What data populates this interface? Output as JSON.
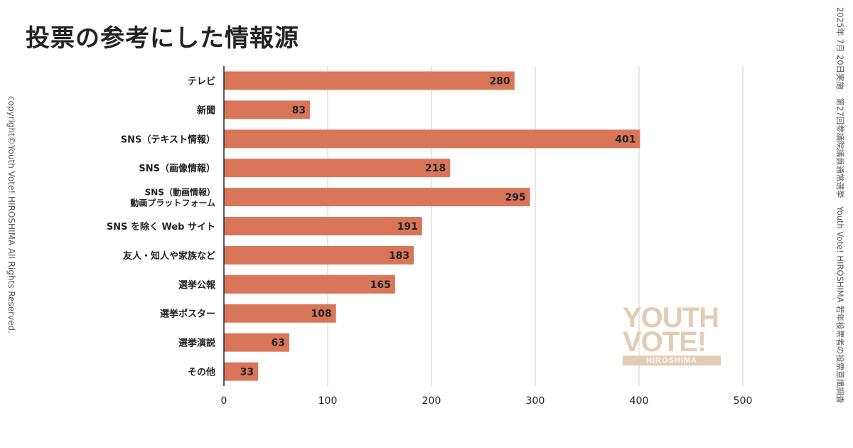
{
  "title": "投票の参考にした情報源",
  "copyright": "copyright©Youth Vote! HIROSHIMA  All Rights Reserved.",
  "source_note": "2025年 7月 20日実施　第27回参議院議員通常選挙　Youth Vote! HIROSHIMA 若年投票者の投票意識調査",
  "logo": {
    "line1": "YOUTH",
    "line2": "VOTE!",
    "line3": "HIROSHIMA"
  },
  "colors": {
    "bar": "#d9765a",
    "grid": "#cccccc",
    "axis": "#222222",
    "logo": "#e2cdb4"
  },
  "chart_data": {
    "type": "bar",
    "orientation": "horizontal",
    "title": "投票の参考にした情報源",
    "categories": [
      [
        "テレビ"
      ],
      [
        "新聞"
      ],
      [
        "SNS（テキスト情報）"
      ],
      [
        "SNS（画像情報）"
      ],
      [
        "SNS（動画情報）",
        "動画プラットフォーム"
      ],
      [
        "SNS を除く Web サイト"
      ],
      [
        "友人・知人や家族など"
      ],
      [
        "選挙公報"
      ],
      [
        "選挙ポスター"
      ],
      [
        "選挙演説"
      ],
      [
        "その他"
      ]
    ],
    "values": [
      280,
      83,
      401,
      218,
      295,
      191,
      183,
      165,
      108,
      63,
      33
    ],
    "xlim": [
      0,
      500
    ],
    "xticks": [
      0,
      100,
      200,
      300,
      400,
      500
    ],
    "grid": true,
    "data_labels": true
  }
}
